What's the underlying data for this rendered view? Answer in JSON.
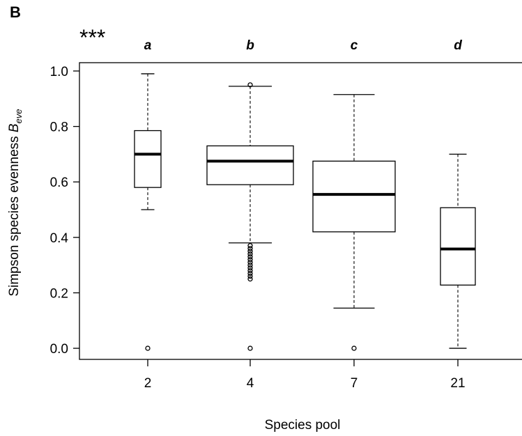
{
  "chart_data": {
    "type": "box",
    "panel_label": "B",
    "significance": "***",
    "xlabel": "Species pool",
    "ylabel_main": "Simpson species evenness ",
    "ylabel_symbol": "B",
    "ylabel_subscript": "eve",
    "ylim": [
      -0.04,
      1.03
    ],
    "yticks": [
      0.0,
      0.2,
      0.4,
      0.6,
      0.8,
      1.0
    ],
    "ytick_labels": [
      "0.0",
      "0.2",
      "0.4",
      "0.6",
      "0.8",
      "1.0"
    ],
    "categories": [
      "2",
      "4",
      "7",
      "21"
    ],
    "group_letters": [
      "a",
      "b",
      "c",
      "d"
    ],
    "boxes": [
      {
        "category": "2",
        "min": 0.5,
        "q1": 0.58,
        "median": 0.7,
        "q3": 0.785,
        "max": 0.99,
        "outliers": [
          0.0
        ]
      },
      {
        "category": "4",
        "min": 0.38,
        "q1": 0.59,
        "median": 0.675,
        "q3": 0.73,
        "max": 0.945,
        "outliers": [
          0.0,
          0.25,
          0.26,
          0.27,
          0.28,
          0.29,
          0.3,
          0.31,
          0.32,
          0.33,
          0.34,
          0.35,
          0.36,
          0.37,
          0.95
        ]
      },
      {
        "category": "7",
        "min": 0.145,
        "q1": 0.42,
        "median": 0.555,
        "q3": 0.675,
        "max": 0.915,
        "outliers": [
          0.0
        ]
      },
      {
        "category": "21",
        "min": 0.0,
        "q1": 0.228,
        "median": 0.358,
        "q3": 0.507,
        "max": 0.7,
        "outliers": []
      }
    ]
  }
}
